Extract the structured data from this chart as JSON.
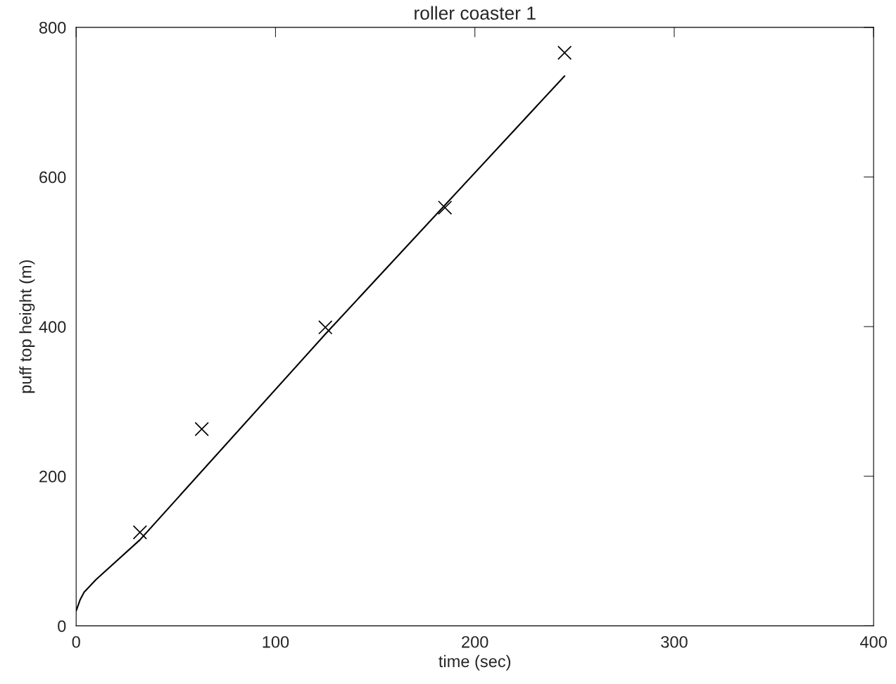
{
  "chart_data": {
    "type": "scatter",
    "title": "roller coaster 1",
    "xlabel": "time (sec)",
    "ylabel": "puff top height (m)",
    "xlim": [
      0,
      400
    ],
    "xticks": [
      0,
      100,
      200,
      300,
      400
    ],
    "ylim": [
      0,
      800
    ],
    "yticks": [
      0,
      200,
      400,
      600,
      800
    ],
    "grid": false,
    "series": [
      {
        "marker": "cross",
        "color": "#000000",
        "x": [
          32,
          63,
          125,
          185,
          245
        ],
        "values": [
          125,
          263,
          399,
          559,
          766
        ]
      },
      {
        "type": "line",
        "marker": "none",
        "line_style": "solid",
        "color": "#000000",
        "x": [
          0,
          2,
          4,
          10,
          32,
          125,
          245
        ],
        "values": [
          20,
          35,
          45,
          62,
          115,
          390,
          735
        ]
      }
    ]
  }
}
